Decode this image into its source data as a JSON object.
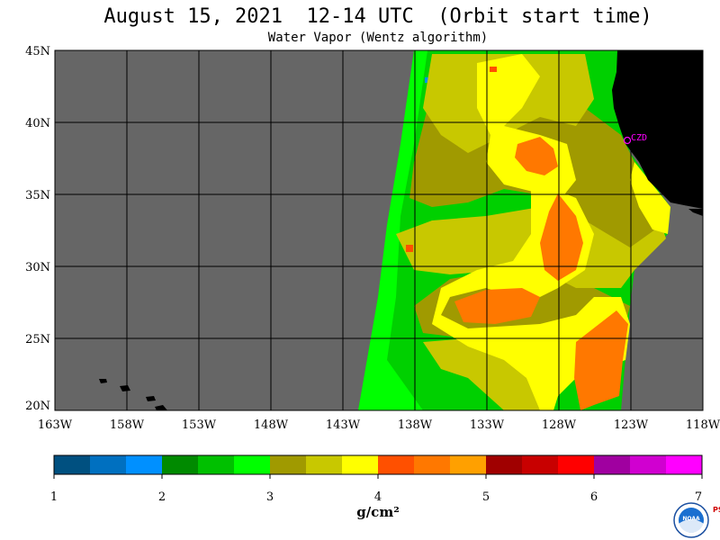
{
  "title": "August 15, 2021  12-14 UTC  (Orbit start time)",
  "subtitle": "Water Vapor (Wentz algorithm)",
  "map": {
    "lon_labels": [
      "163W",
      "158W",
      "153W",
      "148W",
      "143W",
      "138W",
      "133W",
      "128W",
      "123W",
      "118W"
    ],
    "lat_labels": [
      "45N",
      "40N",
      "35N",
      "30N",
      "25N",
      "20N"
    ],
    "station_label": "CZD",
    "colors": {
      "no_data": "#666666",
      "land": "#000000",
      "grid": "#000000",
      "station": "#ff00ff"
    }
  },
  "colorbar": {
    "tick_labels": [
      "1",
      "2",
      "3",
      "4",
      "5",
      "6",
      "7"
    ],
    "units": "g/cm²",
    "colors": [
      "#005080",
      "#0070c0",
      "#0090ff",
      "#008a00",
      "#00c000",
      "#00ff00",
      "#a09a00",
      "#c8c800",
      "#ffff00",
      "#ff5000",
      "#ff7800",
      "#ffa000",
      "#a00000",
      "#c80000",
      "#ff0000",
      "#a000a0",
      "#d000d0",
      "#ff00ff"
    ]
  },
  "logo": {
    "text": "NOAA",
    "side_text": "PSL"
  }
}
